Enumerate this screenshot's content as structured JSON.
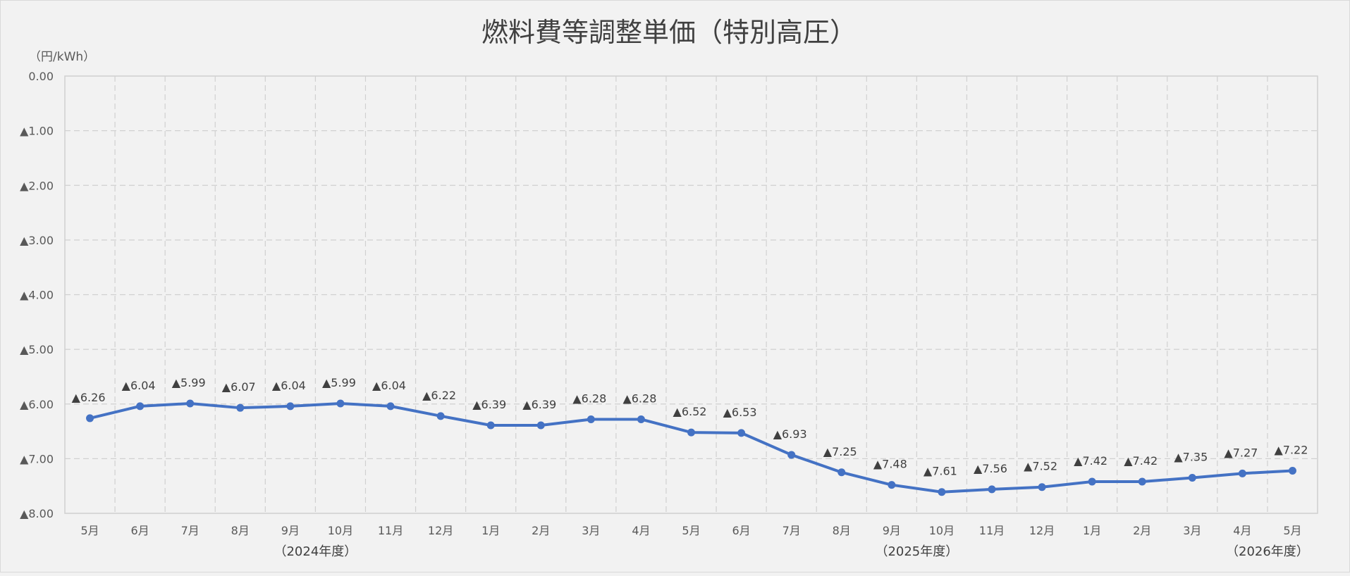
{
  "chart_data": {
    "type": "line",
    "title": "燃料費等調整単価（特別高圧）",
    "ylabel": "（円/kWh）",
    "xlabel": "",
    "ylim": [
      -8,
      0
    ],
    "y_ticks": [
      0,
      -1,
      -2,
      -3,
      -4,
      -5,
      -6,
      -7,
      -8
    ],
    "y_tick_labels": [
      "0.00",
      "▲1.00",
      "▲2.00",
      "▲3.00",
      "▲4.00",
      "▲5.00",
      "▲6.00",
      "▲7.00",
      "▲8.00"
    ],
    "categories": [
      "5月",
      "6月",
      "7月",
      "8月",
      "9月",
      "10月",
      "11月",
      "12月",
      "1月",
      "2月",
      "3月",
      "4月",
      "5月",
      "6月",
      "7月",
      "8月",
      "9月",
      "10月",
      "11月",
      "12月",
      "1月",
      "2月",
      "3月",
      "4月",
      "5月"
    ],
    "year_labels": [
      {
        "label": "（2024年度）",
        "category_index": 4.5
      },
      {
        "label": "（2025年度）",
        "category_index": 16.5
      },
      {
        "label": "（2026年度）",
        "category_index": 23.5
      }
    ],
    "series": [
      {
        "values": [
          -6.26,
          -6.04,
          -5.99,
          -6.07,
          -6.04,
          -5.99,
          -6.04,
          -6.22,
          -6.39,
          -6.39,
          -6.28,
          -6.28,
          -6.52,
          -6.53,
          -6.93,
          -7.25,
          -7.48,
          -7.61,
          -7.56,
          -7.52,
          -7.42,
          -7.42,
          -7.35,
          -7.27,
          -7.22
        ],
        "data_labels": [
          "▲6.26",
          "▲6.04",
          "▲5.99",
          "▲6.07",
          "▲6.04",
          "▲5.99",
          "▲6.04",
          "▲6.22",
          "▲6.39",
          "▲6.39",
          "▲6.28",
          "▲6.28",
          "▲6.52",
          "▲6.53",
          "▲6.93",
          "▲7.25",
          "▲7.48",
          "▲7.61",
          "▲7.56",
          "▲7.52",
          "▲7.42",
          "▲7.42",
          "▲7.35",
          "▲7.27",
          "▲7.22"
        ],
        "color": "#4472c4"
      }
    ],
    "grid": true,
    "legend": "none"
  },
  "colors": {
    "background": "#f2f2f2",
    "line": "#4472c4",
    "grid": "#d0d0d0",
    "text": "#595959"
  }
}
